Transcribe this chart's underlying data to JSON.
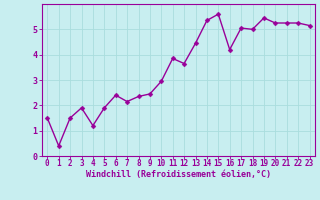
{
  "x": [
    0,
    1,
    2,
    3,
    4,
    5,
    6,
    7,
    8,
    9,
    10,
    11,
    12,
    13,
    14,
    15,
    16,
    17,
    18,
    19,
    20,
    21,
    22,
    23
  ],
  "y": [
    1.5,
    0.4,
    1.5,
    1.9,
    1.2,
    1.9,
    2.4,
    2.15,
    2.35,
    2.45,
    2.95,
    3.85,
    3.65,
    4.45,
    5.35,
    5.6,
    4.2,
    5.05,
    5.0,
    5.45,
    5.25,
    5.25,
    5.25,
    5.15
  ],
  "xlabel": "Windchill (Refroidissement éolien,°C)",
  "line_color": "#990099",
  "marker_color": "#990099",
  "background_color": "#c8eef0",
  "grid_color": "#aadddd",
  "tick_color": "#990099",
  "label_color": "#990099",
  "ylim": [
    0,
    6
  ],
  "xlim": [
    -0.5,
    23.5
  ],
  "yticks": [
    0,
    1,
    2,
    3,
    4,
    5
  ],
  "xticks": [
    0,
    1,
    2,
    3,
    4,
    5,
    6,
    7,
    8,
    9,
    10,
    11,
    12,
    13,
    14,
    15,
    16,
    17,
    18,
    19,
    20,
    21,
    22,
    23
  ],
  "marker_size": 2.5,
  "line_width": 1.0,
  "tick_fontsize": 5.5,
  "xlabel_fontsize": 6.0
}
